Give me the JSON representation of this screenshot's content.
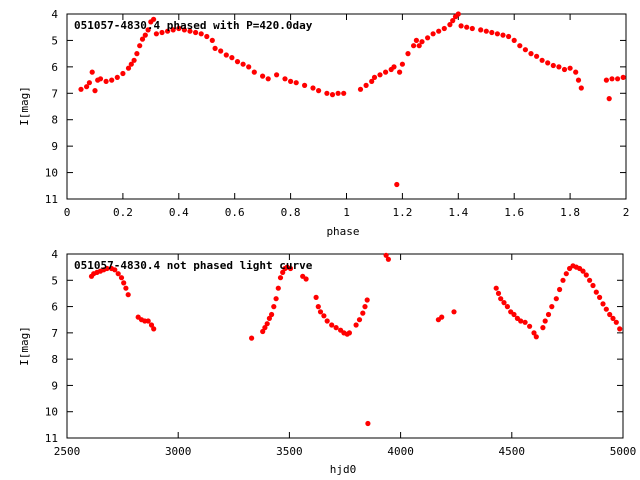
{
  "chart_data": [
    {
      "type": "scatter",
      "title": "051057-4830.4 phased with P=420.0day",
      "xlabel": "phase",
      "ylabel": "I[mag]",
      "xlim": [
        0,
        2
      ],
      "ylim": [
        4,
        11
      ],
      "y_inverted": true,
      "xticks": [
        "0",
        "0.2",
        "0.4",
        "0.6",
        "0.8",
        "1",
        "1.2",
        "1.4",
        "1.6",
        "1.8",
        "2"
      ],
      "yticks": [
        "4",
        "5",
        "6",
        "7",
        "8",
        "9",
        "10",
        "11"
      ],
      "series": [
        {
          "color": "#ff0000",
          "points": [
            [
              0.05,
              6.85
            ],
            [
              0.07,
              6.75
            ],
            [
              0.08,
              6.6
            ],
            [
              0.09,
              6.2
            ],
            [
              0.1,
              6.9
            ],
            [
              0.11,
              6.5
            ],
            [
              0.12,
              6.45
            ],
            [
              0.14,
              6.55
            ],
            [
              0.16,
              6.5
            ],
            [
              0.18,
              6.4
            ],
            [
              0.2,
              6.25
            ],
            [
              0.22,
              6.05
            ],
            [
              0.23,
              5.9
            ],
            [
              0.24,
              5.75
            ],
            [
              0.25,
              5.5
            ],
            [
              0.26,
              5.2
            ],
            [
              0.27,
              4.95
            ],
            [
              0.28,
              4.8
            ],
            [
              0.29,
              4.6
            ],
            [
              0.3,
              4.3
            ],
            [
              0.31,
              4.2
            ],
            [
              0.32,
              4.75
            ],
            [
              0.34,
              4.7
            ],
            [
              0.36,
              4.65
            ],
            [
              0.38,
              4.6
            ],
            [
              0.4,
              4.55
            ],
            [
              0.42,
              4.6
            ],
            [
              0.44,
              4.65
            ],
            [
              0.46,
              4.7
            ],
            [
              0.48,
              4.75
            ],
            [
              0.5,
              4.85
            ],
            [
              0.52,
              5.0
            ],
            [
              0.53,
              5.3
            ],
            [
              0.55,
              5.4
            ],
            [
              0.57,
              5.55
            ],
            [
              0.59,
              5.65
            ],
            [
              0.61,
              5.8
            ],
            [
              0.63,
              5.9
            ],
            [
              0.65,
              6.0
            ],
            [
              0.67,
              6.2
            ],
            [
              0.7,
              6.35
            ],
            [
              0.72,
              6.45
            ],
            [
              0.75,
              6.3
            ],
            [
              0.78,
              6.45
            ],
            [
              0.8,
              6.55
            ],
            [
              0.82,
              6.6
            ],
            [
              0.85,
              6.7
            ],
            [
              0.88,
              6.8
            ],
            [
              0.9,
              6.9
            ],
            [
              0.93,
              7.0
            ],
            [
              0.95,
              7.05
            ],
            [
              0.97,
              7.0
            ],
            [
              0.99,
              7.0
            ],
            [
              1.05,
              6.85
            ],
            [
              1.07,
              6.7
            ],
            [
              1.09,
              6.55
            ],
            [
              1.1,
              6.4
            ],
            [
              1.12,
              6.3
            ],
            [
              1.14,
              6.2
            ],
            [
              1.16,
              6.1
            ],
            [
              1.17,
              6.0
            ],
            [
              1.18,
              10.45
            ],
            [
              1.19,
              6.2
            ],
            [
              1.2,
              5.9
            ],
            [
              1.22,
              5.5
            ],
            [
              1.24,
              5.2
            ],
            [
              1.25,
              5.0
            ],
            [
              1.26,
              5.2
            ],
            [
              1.27,
              5.05
            ],
            [
              1.29,
              4.9
            ],
            [
              1.31,
              4.75
            ],
            [
              1.33,
              4.65
            ],
            [
              1.35,
              4.55
            ],
            [
              1.37,
              4.4
            ],
            [
              1.38,
              4.25
            ],
            [
              1.39,
              4.1
            ],
            [
              1.4,
              4.0
            ],
            [
              1.41,
              4.45
            ],
            [
              1.43,
              4.5
            ],
            [
              1.45,
              4.55
            ],
            [
              1.48,
              4.6
            ],
            [
              1.5,
              4.65
            ],
            [
              1.52,
              4.7
            ],
            [
              1.54,
              4.75
            ],
            [
              1.56,
              4.8
            ],
            [
              1.58,
              4.85
            ],
            [
              1.6,
              5.0
            ],
            [
              1.62,
              5.2
            ],
            [
              1.64,
              5.35
            ],
            [
              1.66,
              5.5
            ],
            [
              1.68,
              5.6
            ],
            [
              1.7,
              5.75
            ],
            [
              1.72,
              5.85
            ],
            [
              1.74,
              5.95
            ],
            [
              1.76,
              6.0
            ],
            [
              1.78,
              6.1
            ],
            [
              1.8,
              6.05
            ],
            [
              1.82,
              6.2
            ],
            [
              1.83,
              6.5
            ],
            [
              1.84,
              6.8
            ],
            [
              1.93,
              6.5
            ],
            [
              1.94,
              7.2
            ],
            [
              1.95,
              6.45
            ],
            [
              1.97,
              6.45
            ],
            [
              1.99,
              6.4
            ]
          ]
        }
      ]
    },
    {
      "type": "scatter",
      "title": "051057-4830.4 not phased light curve",
      "xlabel": "hjd0",
      "ylabel": "I[mag]",
      "xlim": [
        2500,
        5000
      ],
      "ylim": [
        4,
        11
      ],
      "y_inverted": true,
      "xticks": [
        "2500",
        "3000",
        "3500",
        "4000",
        "4500",
        "5000"
      ],
      "yticks": [
        "4",
        "5",
        "6",
        "7",
        "8",
        "9",
        "10",
        "11"
      ],
      "series": [
        {
          "color": "#ff0000",
          "points": [
            [
              2610,
              4.85
            ],
            [
              2620,
              4.75
            ],
            [
              2635,
              4.7
            ],
            [
              2650,
              4.65
            ],
            [
              2665,
              4.6
            ],
            [
              2680,
              4.55
            ],
            [
              2700,
              4.55
            ],
            [
              2715,
              4.6
            ],
            [
              2730,
              4.75
            ],
            [
              2745,
              4.9
            ],
            [
              2755,
              5.1
            ],
            [
              2765,
              5.3
            ],
            [
              2775,
              5.55
            ],
            [
              2820,
              6.4
            ],
            [
              2835,
              6.5
            ],
            [
              2850,
              6.55
            ],
            [
              2865,
              6.55
            ],
            [
              2880,
              6.7
            ],
            [
              2890,
              6.85
            ],
            [
              3330,
              7.2
            ],
            [
              3380,
              6.95
            ],
            [
              3390,
              6.8
            ],
            [
              3400,
              6.65
            ],
            [
              3410,
              6.45
            ],
            [
              3420,
              6.3
            ],
            [
              3430,
              6.0
            ],
            [
              3440,
              5.7
            ],
            [
              3450,
              5.3
            ],
            [
              3460,
              4.9
            ],
            [
              3470,
              4.7
            ],
            [
              3480,
              4.55
            ],
            [
              3490,
              4.5
            ],
            [
              3505,
              4.55
            ],
            [
              3560,
              4.85
            ],
            [
              3575,
              4.95
            ],
            [
              3620,
              5.65
            ],
            [
              3630,
              6.0
            ],
            [
              3640,
              6.2
            ],
            [
              3655,
              6.35
            ],
            [
              3670,
              6.55
            ],
            [
              3690,
              6.7
            ],
            [
              3710,
              6.8
            ],
            [
              3730,
              6.9
            ],
            [
              3745,
              7.0
            ],
            [
              3760,
              7.05
            ],
            [
              3770,
              7.0
            ],
            [
              3800,
              6.7
            ],
            [
              3815,
              6.5
            ],
            [
              3830,
              6.25
            ],
            [
              3840,
              6.0
            ],
            [
              3850,
              5.75
            ],
            [
              3853,
              10.45
            ],
            [
              3935,
              4.05
            ],
            [
              3945,
              4.2
            ],
            [
              4170,
              6.5
            ],
            [
              4185,
              6.4
            ],
            [
              4240,
              6.2
            ],
            [
              4430,
              5.3
            ],
            [
              4440,
              5.5
            ],
            [
              4450,
              5.7
            ],
            [
              4465,
              5.85
            ],
            [
              4480,
              6.0
            ],
            [
              4495,
              6.2
            ],
            [
              4510,
              6.3
            ],
            [
              4525,
              6.45
            ],
            [
              4540,
              6.55
            ],
            [
              4560,
              6.6
            ],
            [
              4580,
              6.75
            ],
            [
              4600,
              7.0
            ],
            [
              4610,
              7.15
            ],
            [
              4640,
              6.8
            ],
            [
              4650,
              6.55
            ],
            [
              4665,
              6.3
            ],
            [
              4680,
              6.0
            ],
            [
              4700,
              5.7
            ],
            [
              4715,
              5.35
            ],
            [
              4730,
              5.0
            ],
            [
              4745,
              4.75
            ],
            [
              4760,
              4.55
            ],
            [
              4775,
              4.45
            ],
            [
              4790,
              4.5
            ],
            [
              4805,
              4.55
            ],
            [
              4820,
              4.65
            ],
            [
              4835,
              4.8
            ],
            [
              4850,
              5.0
            ],
            [
              4865,
              5.2
            ],
            [
              4880,
              5.45
            ],
            [
              4895,
              5.65
            ],
            [
              4910,
              5.9
            ],
            [
              4925,
              6.1
            ],
            [
              4940,
              6.3
            ],
            [
              4955,
              6.45
            ],
            [
              4970,
              6.6
            ],
            [
              4985,
              6.85
            ]
          ]
        }
      ]
    }
  ]
}
